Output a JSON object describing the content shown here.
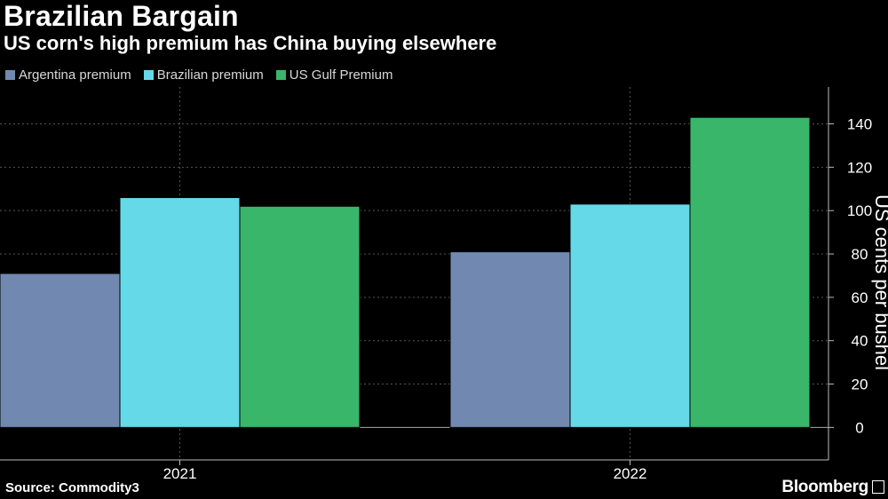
{
  "header": {
    "title": "Brazilian Bargain",
    "subtitle": "US corn's high premium has China buying elsewhere"
  },
  "footer": {
    "source": "Source: Commodity3",
    "brand": "Bloomberg"
  },
  "chart_data": {
    "type": "bar",
    "title": "Brazilian Bargain",
    "subtitle": "US corn's high premium has China buying elsewhere",
    "categories": [
      "2021",
      "2022"
    ],
    "series": [
      {
        "name": "Argentina premium",
        "color": "#7189b0",
        "values": [
          71,
          81
        ]
      },
      {
        "name": "Brazilian premium",
        "color": "#66d9e8",
        "values": [
          106,
          103
        ]
      },
      {
        "name": "US Gulf Premium",
        "color": "#3ab66a",
        "values": [
          102,
          143
        ]
      }
    ],
    "xlabel": "",
    "ylabel": "US cents per bushel",
    "ylim": [
      -15,
      157
    ],
    "yticks": [
      0,
      20,
      40,
      60,
      80,
      100,
      120,
      140
    ],
    "grid": true,
    "legend": "top-left"
  }
}
